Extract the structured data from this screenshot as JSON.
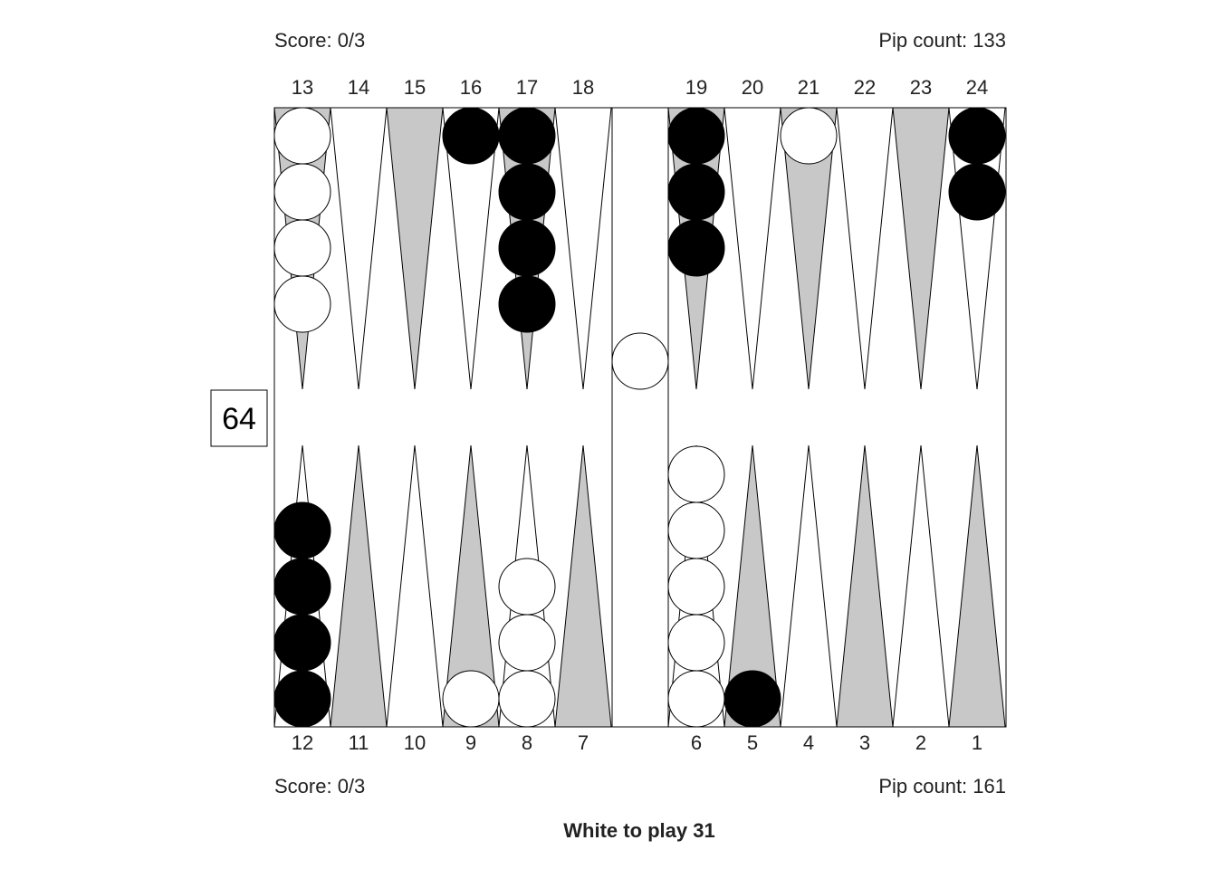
{
  "top": {
    "score": "Score: 0/3",
    "pip": "Pip count: 133"
  },
  "bottom": {
    "score": "Score: 0/3",
    "pip": "Pip count: 161"
  },
  "status": "White to play 31",
  "cube": {
    "value": "64"
  },
  "top_labels": [
    "13",
    "14",
    "15",
    "16",
    "17",
    "18",
    "19",
    "20",
    "21",
    "22",
    "23",
    "24"
  ],
  "bottom_labels": [
    "12",
    "11",
    "10",
    "9",
    "8",
    "7",
    "6",
    "5",
    "4",
    "3",
    "2",
    "1"
  ],
  "colors": {
    "dark_point": "#c8c8c8",
    "light_point": "#ffffff",
    "black_checker": "#000000",
    "white_checker": "#ffffff",
    "line": "#000000"
  },
  "checkers": {
    "white": {
      "6": 5,
      "8": 3,
      "9": 1,
      "13": 4,
      "21": 1,
      "bar": 1
    },
    "black": {
      "5": 1,
      "12": 4,
      "16": 1,
      "17": 4,
      "19": 3,
      "24": 2
    }
  }
}
